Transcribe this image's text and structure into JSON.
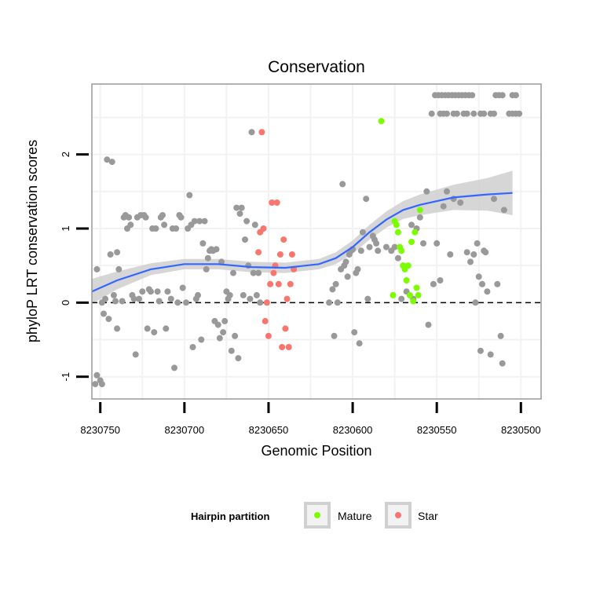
{
  "chart_data": {
    "type": "scatter",
    "title": "Conservation",
    "xlabel": "Genomic Position",
    "ylabel": "phyloP LRT conservation scores",
    "x_reversed": true,
    "xlim": [
      8230755,
      8230488
    ],
    "ylim": [
      -1.3,
      2.95
    ],
    "x_ticks": [
      8230750,
      8230700,
      8230650,
      8230600,
      8230550,
      8230500
    ],
    "x_tick_labels": [
      "8230750",
      "8230700",
      "8230650",
      "8230600",
      "8230550",
      "8230500"
    ],
    "y_ticks": [
      -1,
      0,
      1,
      2
    ],
    "y_tick_labels": [
      "-1",
      "0",
      "1",
      "2"
    ],
    "reference_line": {
      "y": 0,
      "style": "dashed"
    },
    "legend": {
      "title": "Hairpin partition",
      "position": "bottom",
      "entries": [
        {
          "label": "Mature",
          "color": "#7cfc00"
        },
        {
          "label": "Star",
          "color": "#f8766d"
        }
      ]
    },
    "colors": {
      "other": "#999999",
      "mature": "#7cfc00",
      "star": "#f8766d",
      "smooth": "#3366ff",
      "band": "#cccccc",
      "panel_border": "#999999",
      "grid": "#f2f2f2"
    },
    "series": [
      {
        "name": "Other",
        "points": [
          [
            8230753,
            -1.1
          ],
          [
            8230752,
            -0.98
          ],
          [
            8230750,
            -1.05
          ],
          [
            8230749,
            -1.1
          ],
          [
            8230752,
            0.45
          ],
          [
            8230749,
            0.0
          ],
          [
            8230748,
            -0.15
          ],
          [
            8230747,
            0.05
          ],
          [
            8230746,
            1.93
          ],
          [
            8230745,
            -0.22
          ],
          [
            8230744,
            0.65
          ],
          [
            8230743,
            1.9
          ],
          [
            8230742,
            0.1
          ],
          [
            8230741,
            0.02
          ],
          [
            8230740,
            -0.35
          ],
          [
            8230740,
            0.68
          ],
          [
            8230739,
            0.45
          ],
          [
            8230737,
            0.02
          ],
          [
            8230736,
            1.15
          ],
          [
            8230735,
            1.18
          ],
          [
            8230734,
            1.0
          ],
          [
            8230733,
            1.15
          ],
          [
            8230732,
            1.05
          ],
          [
            8230731,
            0.1
          ],
          [
            8230730,
            0.05
          ],
          [
            8230729,
            -0.7
          ],
          [
            8230728,
            1.15
          ],
          [
            8230727,
            0.05
          ],
          [
            8230726,
            1.18
          ],
          [
            8230725,
            0.15
          ],
          [
            8230724,
            1.18
          ],
          [
            8230723,
            1.15
          ],
          [
            8230722,
            -0.35
          ],
          [
            8230721,
            0.18
          ],
          [
            8230720,
            0.15
          ],
          [
            8230719,
            1.0
          ],
          [
            8230718,
            -0.4
          ],
          [
            8230717,
            1.0
          ],
          [
            8230716,
            0.15
          ],
          [
            8230715,
            0.02
          ],
          [
            8230714,
            1.15
          ],
          [
            8230713,
            1.18
          ],
          [
            8230712,
            1.05
          ],
          [
            8230711,
            -0.35
          ],
          [
            8230710,
            0.15
          ],
          [
            8230708,
            0.05
          ],
          [
            8230707,
            1.0
          ],
          [
            8230706,
            -0.88
          ],
          [
            8230705,
            1.0
          ],
          [
            8230704,
            0.0
          ],
          [
            8230703,
            1.18
          ],
          [
            8230702,
            1.15
          ],
          [
            8230701,
            0.2
          ],
          [
            8230699,
            0.0
          ],
          [
            8230698,
            1.0
          ],
          [
            8230697,
            1.45
          ],
          [
            8230696,
            1.05
          ],
          [
            8230695,
            -0.6
          ],
          [
            8230694,
            1.1
          ],
          [
            8230693,
            0.05
          ],
          [
            8230692,
            0.1
          ],
          [
            8230691,
            1.1
          ],
          [
            8230690,
            -0.5
          ],
          [
            8230689,
            0.8
          ],
          [
            8230688,
            1.1
          ],
          [
            8230687,
            0.45
          ],
          [
            8230686,
            0.6
          ],
          [
            8230685,
            0.7
          ],
          [
            8230684,
            0.72
          ],
          [
            8230683,
            0.7
          ],
          [
            8230682,
            -0.25
          ],
          [
            8230681,
            0.72
          ],
          [
            8230680,
            -0.3
          ],
          [
            8230679,
            -0.48
          ],
          [
            8230678,
            0.55
          ],
          [
            8230677,
            -0.4
          ],
          [
            8230676,
            -0.25
          ],
          [
            8230675,
            0.15
          ],
          [
            8230674,
            0.05
          ],
          [
            8230673,
            0.1
          ],
          [
            8230672,
            -0.65
          ],
          [
            8230671,
            0.4
          ],
          [
            8230670,
            -0.45
          ],
          [
            8230669,
            1.28
          ],
          [
            8230668,
            -0.75
          ],
          [
            8230667,
            1.2
          ],
          [
            8230666,
            1.28
          ],
          [
            8230665,
            0.1
          ],
          [
            8230664,
            0.85
          ],
          [
            8230663,
            1.1
          ],
          [
            8230662,
            0.5
          ],
          [
            8230661,
            0.05
          ],
          [
            8230660,
            2.3
          ],
          [
            8230659,
            0.4
          ],
          [
            8230658,
            1.05
          ],
          [
            8230657,
            0.1
          ],
          [
            8230656,
            0.4
          ],
          [
            8230655,
            0.0
          ],
          [
            8230614,
            0.0
          ],
          [
            8230612,
            0.18
          ],
          [
            8230611,
            -0.45
          ],
          [
            8230610,
            0.25
          ],
          [
            8230609,
            0.0
          ],
          [
            8230607,
            0.45
          ],
          [
            8230606,
            1.6
          ],
          [
            8230605,
            0.5
          ],
          [
            8230604,
            0.55
          ],
          [
            8230603,
            0.35
          ],
          [
            8230602,
            0.65
          ],
          [
            8230601,
            0.7
          ],
          [
            8230600,
            0.72
          ],
          [
            8230599,
            -0.4
          ],
          [
            8230598,
            0.4
          ],
          [
            8230597,
            0.45
          ],
          [
            8230596,
            -0.55
          ],
          [
            8230595,
            0.7
          ],
          [
            8230594,
            0.95
          ],
          [
            8230592,
            1.4
          ],
          [
            8230591,
            0.05
          ],
          [
            8230590,
            0.75
          ],
          [
            8230588,
            0.9
          ],
          [
            8230587,
            0.85
          ],
          [
            8230586,
            0.8
          ],
          [
            8230585,
            0.7
          ],
          [
            8230580,
            0.75
          ],
          [
            8230577,
            0.7
          ],
          [
            8230575,
            0.75
          ],
          [
            8230573,
            0.6
          ],
          [
            8230571,
            0.05
          ],
          [
            8230570,
            0.5
          ],
          [
            8230568,
            0.15
          ],
          [
            8230565,
            1.05
          ],
          [
            8230564,
            0.05
          ],
          [
            8230562,
            1.0
          ],
          [
            8230560,
            1.15
          ],
          [
            8230558,
            0.8
          ],
          [
            8230556,
            1.5
          ],
          [
            8230555,
            -0.3
          ],
          [
            8230552,
            0.25
          ],
          [
            8230550,
            0.8
          ],
          [
            8230548,
            0.3
          ],
          [
            8230546,
            1.3
          ],
          [
            8230544,
            1.5
          ],
          [
            8230542,
            0.65
          ],
          [
            8230540,
            1.4
          ],
          [
            8230536,
            1.35
          ],
          [
            8230532,
            0.68
          ],
          [
            8230530,
            0.55
          ],
          [
            8230528,
            0.65
          ],
          [
            8230527,
            0.0
          ],
          [
            8230526,
            0.8
          ],
          [
            8230525,
            0.35
          ],
          [
            8230524,
            -0.65
          ],
          [
            8230523,
            0.25
          ],
          [
            8230522,
            0.7
          ],
          [
            8230521,
            0.68
          ],
          [
            8230520,
            0.15
          ],
          [
            8230518,
            -0.7
          ],
          [
            8230516,
            1.4
          ],
          [
            8230514,
            0.25
          ],
          [
            8230512,
            -0.45
          ],
          [
            8230511,
            -0.82
          ],
          [
            8230510,
            1.25
          ],
          [
            8230551,
            2.8
          ],
          [
            8230549,
            2.8
          ],
          [
            8230547,
            2.8
          ],
          [
            8230545,
            2.8
          ],
          [
            8230543,
            2.8
          ],
          [
            8230541,
            2.8
          ],
          [
            8230539,
            2.8
          ],
          [
            8230537,
            2.8
          ],
          [
            8230535,
            2.8
          ],
          [
            8230533,
            2.8
          ],
          [
            8230531,
            2.8
          ],
          [
            8230529,
            2.8
          ],
          [
            8230515,
            2.8
          ],
          [
            8230513,
            2.8
          ],
          [
            8230511,
            2.8
          ],
          [
            8230505,
            2.8
          ],
          [
            8230503,
            2.8
          ],
          [
            8230553,
            2.55
          ],
          [
            8230548,
            2.55
          ],
          [
            8230546,
            2.55
          ],
          [
            8230544,
            2.55
          ],
          [
            8230540,
            2.55
          ],
          [
            8230538,
            2.55
          ],
          [
            8230534,
            2.55
          ],
          [
            8230532,
            2.55
          ],
          [
            8230528,
            2.55
          ],
          [
            8230524,
            2.55
          ],
          [
            8230522,
            2.55
          ],
          [
            8230518,
            2.55
          ],
          [
            8230516,
            2.55
          ],
          [
            8230507,
            2.55
          ],
          [
            8230505,
            2.55
          ],
          [
            8230503,
            2.55
          ],
          [
            8230501,
            2.55
          ]
        ]
      },
      {
        "name": "Star",
        "points": [
          [
            8230656,
            0.68
          ],
          [
            8230655,
            0.95
          ],
          [
            8230654,
            2.3
          ],
          [
            8230653,
            1.0
          ],
          [
            8230652,
            -0.25
          ],
          [
            8230651,
            0.0
          ],
          [
            8230650,
            -0.45
          ],
          [
            8230649,
            0.25
          ],
          [
            8230648,
            1.35
          ],
          [
            8230647,
            0.4
          ],
          [
            8230646,
            0.5
          ],
          [
            8230645,
            1.35
          ],
          [
            8230644,
            0.25
          ],
          [
            8230643,
            0.65
          ],
          [
            8230642,
            -0.6
          ],
          [
            8230641,
            0.85
          ],
          [
            8230640,
            -0.35
          ],
          [
            8230639,
            0.05
          ],
          [
            8230638,
            -0.6
          ],
          [
            8230637,
            0.25
          ],
          [
            8230636,
            0.65
          ],
          [
            8230635,
            0.45
          ]
        ]
      },
      {
        "name": "Mature",
        "points": [
          [
            8230583,
            2.45
          ],
          [
            8230575,
            1.1
          ],
          [
            8230574,
            1.05
          ],
          [
            8230573,
            0.95
          ],
          [
            8230572,
            0.75
          ],
          [
            8230571,
            0.7
          ],
          [
            8230570,
            0.5
          ],
          [
            8230569,
            0.45
          ],
          [
            8230568,
            0.3
          ],
          [
            8230567,
            0.5
          ],
          [
            8230566,
            0.1
          ],
          [
            8230565,
            0.82
          ],
          [
            8230564,
            0.02
          ],
          [
            8230563,
            0.95
          ],
          [
            8230562,
            0.2
          ],
          [
            8230561,
            0.1
          ],
          [
            8230560,
            1.25
          ],
          [
            8230576,
            0.1
          ]
        ]
      }
    ],
    "smooth": [
      [
        8230755,
        0.15
      ],
      [
        8230740,
        0.3
      ],
      [
        8230720,
        0.45
      ],
      [
        8230700,
        0.52
      ],
      [
        8230680,
        0.52
      ],
      [
        8230660,
        0.48
      ],
      [
        8230640,
        0.47
      ],
      [
        8230620,
        0.52
      ],
      [
        8230610,
        0.6
      ],
      [
        8230600,
        0.75
      ],
      [
        8230590,
        0.95
      ],
      [
        8230580,
        1.12
      ],
      [
        8230570,
        1.25
      ],
      [
        8230560,
        1.32
      ],
      [
        8230540,
        1.42
      ],
      [
        8230520,
        1.46
      ],
      [
        8230505,
        1.48
      ]
    ],
    "smooth_se": [
      0.17,
      0.12,
      0.08,
      0.07,
      0.07,
      0.07,
      0.07,
      0.07,
      0.08,
      0.09,
      0.1,
      0.11,
      0.12,
      0.14,
      0.17,
      0.22,
      0.3
    ]
  }
}
